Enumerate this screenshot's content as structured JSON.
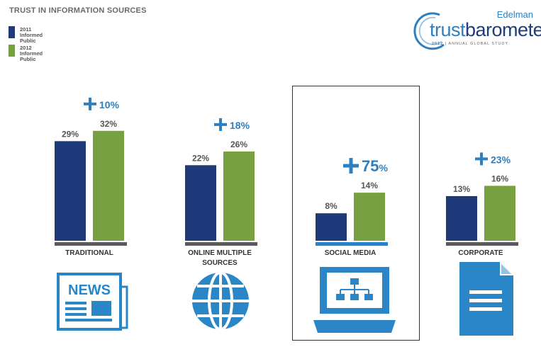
{
  "title": "TRUST IN INFORMATION SOURCES",
  "legend": [
    {
      "name": "2011\nInformed Public",
      "color": "#1f3a7a"
    },
    {
      "name": "2012\nInformed Public",
      "color": "#77a040"
    }
  ],
  "logo": {
    "brand": "Edelman",
    "name_light": "trust",
    "name_bold": "barometer",
    "year": "2012",
    "subtitle": "| ANNUAL GLOBAL STUDY"
  },
  "chart_data": {
    "type": "bar",
    "title": "TRUST IN INFORMATION SOURCES",
    "categories": [
      "TRADITIONAL",
      "ONLINE MULTIPLE\nSOURCES",
      "SOCIAL MEDIA",
      "CORPORATE"
    ],
    "series": [
      {
        "name": "2011 Informed Public",
        "values": [
          29,
          22,
          8,
          13
        ],
        "color": "#1f3a7a"
      },
      {
        "name": "2012 Informed Public",
        "values": [
          32,
          26,
          14,
          16
        ],
        "color": "#77a040"
      }
    ],
    "value_labels_2011": [
      "29%",
      "22%",
      "8%",
      "13%"
    ],
    "value_labels_2012": [
      "32%",
      "26%",
      "14%",
      "16%"
    ],
    "change_labels": [
      "10%",
      "18%",
      "75",
      "23%"
    ],
    "change_suffix": [
      "",
      "",
      "%",
      ""
    ],
    "highlighted_category": "SOCIAL MEDIA",
    "icons": [
      "news-icon",
      "globe-icon",
      "laptop-network-icon",
      "document-icon"
    ],
    "accent_color": "#2d7fc0",
    "baseline_color": "#5a5a5a",
    "highlight_baseline_color": "#2d7fc0"
  }
}
